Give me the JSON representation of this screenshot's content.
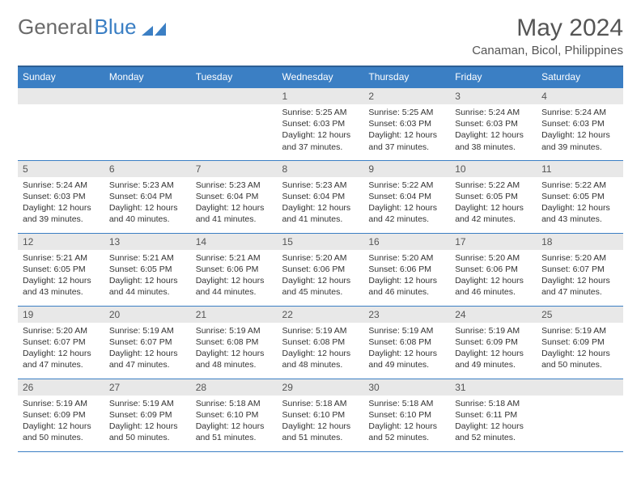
{
  "logo": {
    "text1": "General",
    "text2": "Blue"
  },
  "title": "May 2024",
  "location": "Canaman, Bicol, Philippines",
  "colors": {
    "header_bg": "#3b7fc4",
    "header_border": "#2e5f94",
    "cell_border": "#3b7fc4",
    "daynum_bg": "#e8e8e8",
    "text": "#333333",
    "title_text": "#555555"
  },
  "weekdays": [
    "Sunday",
    "Monday",
    "Tuesday",
    "Wednesday",
    "Thursday",
    "Friday",
    "Saturday"
  ],
  "weeks": [
    [
      null,
      null,
      null,
      {
        "n": "1",
        "sr": "5:25 AM",
        "ss": "6:03 PM",
        "dl": "12 hours and 37 minutes."
      },
      {
        "n": "2",
        "sr": "5:25 AM",
        "ss": "6:03 PM",
        "dl": "12 hours and 37 minutes."
      },
      {
        "n": "3",
        "sr": "5:24 AM",
        "ss": "6:03 PM",
        "dl": "12 hours and 38 minutes."
      },
      {
        "n": "4",
        "sr": "5:24 AM",
        "ss": "6:03 PM",
        "dl": "12 hours and 39 minutes."
      }
    ],
    [
      {
        "n": "5",
        "sr": "5:24 AM",
        "ss": "6:03 PM",
        "dl": "12 hours and 39 minutes."
      },
      {
        "n": "6",
        "sr": "5:23 AM",
        "ss": "6:04 PM",
        "dl": "12 hours and 40 minutes."
      },
      {
        "n": "7",
        "sr": "5:23 AM",
        "ss": "6:04 PM",
        "dl": "12 hours and 41 minutes."
      },
      {
        "n": "8",
        "sr": "5:23 AM",
        "ss": "6:04 PM",
        "dl": "12 hours and 41 minutes."
      },
      {
        "n": "9",
        "sr": "5:22 AM",
        "ss": "6:04 PM",
        "dl": "12 hours and 42 minutes."
      },
      {
        "n": "10",
        "sr": "5:22 AM",
        "ss": "6:05 PM",
        "dl": "12 hours and 42 minutes."
      },
      {
        "n": "11",
        "sr": "5:22 AM",
        "ss": "6:05 PM",
        "dl": "12 hours and 43 minutes."
      }
    ],
    [
      {
        "n": "12",
        "sr": "5:21 AM",
        "ss": "6:05 PM",
        "dl": "12 hours and 43 minutes."
      },
      {
        "n": "13",
        "sr": "5:21 AM",
        "ss": "6:05 PM",
        "dl": "12 hours and 44 minutes."
      },
      {
        "n": "14",
        "sr": "5:21 AM",
        "ss": "6:06 PM",
        "dl": "12 hours and 44 minutes."
      },
      {
        "n": "15",
        "sr": "5:20 AM",
        "ss": "6:06 PM",
        "dl": "12 hours and 45 minutes."
      },
      {
        "n": "16",
        "sr": "5:20 AM",
        "ss": "6:06 PM",
        "dl": "12 hours and 46 minutes."
      },
      {
        "n": "17",
        "sr": "5:20 AM",
        "ss": "6:06 PM",
        "dl": "12 hours and 46 minutes."
      },
      {
        "n": "18",
        "sr": "5:20 AM",
        "ss": "6:07 PM",
        "dl": "12 hours and 47 minutes."
      }
    ],
    [
      {
        "n": "19",
        "sr": "5:20 AM",
        "ss": "6:07 PM",
        "dl": "12 hours and 47 minutes."
      },
      {
        "n": "20",
        "sr": "5:19 AM",
        "ss": "6:07 PM",
        "dl": "12 hours and 47 minutes."
      },
      {
        "n": "21",
        "sr": "5:19 AM",
        "ss": "6:08 PM",
        "dl": "12 hours and 48 minutes."
      },
      {
        "n": "22",
        "sr": "5:19 AM",
        "ss": "6:08 PM",
        "dl": "12 hours and 48 minutes."
      },
      {
        "n": "23",
        "sr": "5:19 AM",
        "ss": "6:08 PM",
        "dl": "12 hours and 49 minutes."
      },
      {
        "n": "24",
        "sr": "5:19 AM",
        "ss": "6:09 PM",
        "dl": "12 hours and 49 minutes."
      },
      {
        "n": "25",
        "sr": "5:19 AM",
        "ss": "6:09 PM",
        "dl": "12 hours and 50 minutes."
      }
    ],
    [
      {
        "n": "26",
        "sr": "5:19 AM",
        "ss": "6:09 PM",
        "dl": "12 hours and 50 minutes."
      },
      {
        "n": "27",
        "sr": "5:19 AM",
        "ss": "6:09 PM",
        "dl": "12 hours and 50 minutes."
      },
      {
        "n": "28",
        "sr": "5:18 AM",
        "ss": "6:10 PM",
        "dl": "12 hours and 51 minutes."
      },
      {
        "n": "29",
        "sr": "5:18 AM",
        "ss": "6:10 PM",
        "dl": "12 hours and 51 minutes."
      },
      {
        "n": "30",
        "sr": "5:18 AM",
        "ss": "6:10 PM",
        "dl": "12 hours and 52 minutes."
      },
      {
        "n": "31",
        "sr": "5:18 AM",
        "ss": "6:11 PM",
        "dl": "12 hours and 52 minutes."
      },
      null
    ]
  ]
}
